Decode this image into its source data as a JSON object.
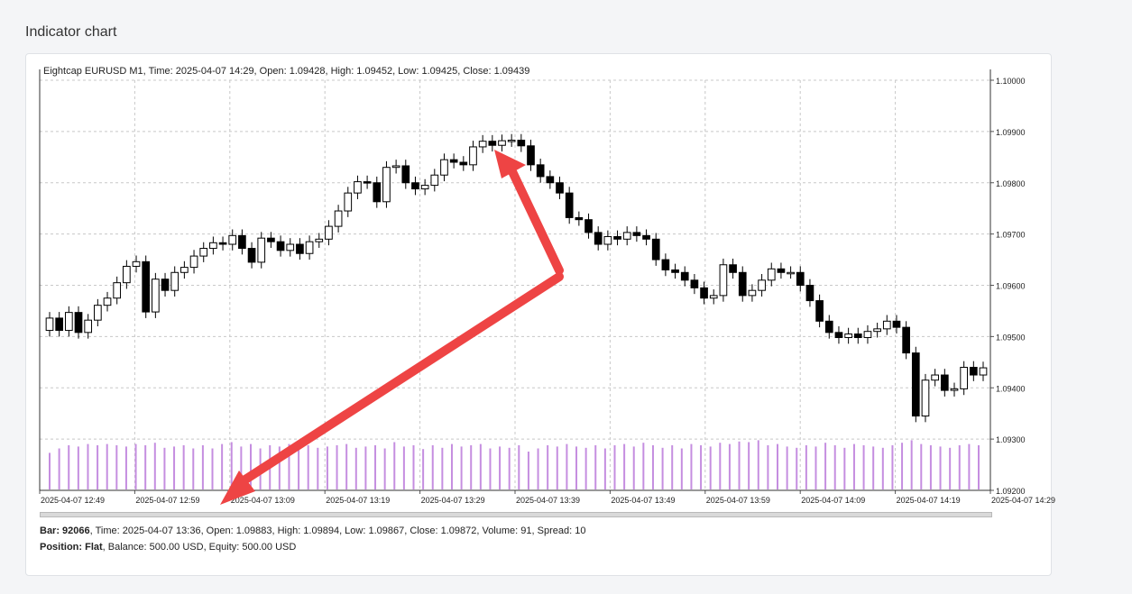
{
  "page": {
    "section_title": "Indicator chart"
  },
  "chart_header": "Eightcap EURUSD M1, Time: 2025-04-07 14:29, Open: 1.09428, High: 1.09452, Low: 1.09425, Close: 1.09439",
  "bar_info": {
    "bar_label": "Bar: 92066",
    "details": ", Time: 2025-04-07 13:36, Open: 1.09883, High: 1.09894, Low: 1.09867, Close: 1.09872, Volume: 91, Spread: 10"
  },
  "position_info": {
    "position_label": "Position: Flat",
    "details": ", Balance: 500.00 USD, Equity: 500.00 USD"
  },
  "colors": {
    "bull_body": "#ffffff",
    "bear_body": "#000000",
    "wick": "#000000",
    "volume": "#c58ee0",
    "grid": "#c8c8c8",
    "arrow": "#ee4444"
  },
  "chart_data": {
    "type": "candlestick",
    "price_ticks": [
      "1.10000",
      "1.09900",
      "1.09800",
      "1.09700",
      "1.09600",
      "1.09500",
      "1.09400",
      "1.09300",
      "1.09200"
    ],
    "ylim": [
      1.092,
      1.1
    ],
    "time_ticks": [
      "2025-04-07 12:49",
      "2025-04-07 12:59",
      "2025-04-07 13:09",
      "2025-04-07 13:19",
      "2025-04-07 13:29",
      "2025-04-07 13:39",
      "2025-04-07 13:49",
      "2025-04-07 13:59",
      "2025-04-07 14:09",
      "2025-04-07 14:19",
      "2025-04-07 14:29"
    ],
    "grid": true,
    "series": [
      {
        "name": "EURUSD M1",
        "closes": [
          1.09536,
          1.09512,
          1.09547,
          1.09508,
          1.09532,
          1.09561,
          1.09575,
          1.09605,
          1.09637,
          1.09646,
          1.09548,
          1.09612,
          1.0959,
          1.09625,
          1.09635,
          1.09657,
          1.09672,
          1.09683,
          1.0968,
          1.09697,
          1.09672,
          1.09645,
          1.09692,
          1.09685,
          1.09668,
          1.0968,
          1.09662,
          1.09685,
          1.0969,
          1.09715,
          1.09745,
          1.0978,
          1.09802,
          1.098,
          1.09763,
          1.0983,
          1.09833,
          1.098,
          1.09788,
          1.09795,
          1.09815,
          1.09845,
          1.0984,
          1.09835,
          1.0987,
          1.09881,
          1.09873,
          1.09882,
          1.09883,
          1.09872,
          1.09835,
          1.09812,
          1.098,
          1.0978,
          1.09732,
          1.09728,
          1.09703,
          1.0968,
          1.09695,
          1.0969,
          1.09703,
          1.09697,
          1.0969,
          1.0965,
          1.0963,
          1.09625,
          1.0961,
          1.09595,
          1.09575,
          1.0958,
          1.0964,
          1.09625,
          1.0958,
          1.0959,
          1.0961,
          1.09632,
          1.09625,
          1.09625,
          1.096,
          1.0957,
          1.0953,
          1.09508,
          1.09498,
          1.09505,
          1.09498,
          1.0951,
          1.09515,
          1.0953,
          1.09518,
          1.09468,
          1.09345,
          1.09415,
          1.09425,
          1.09395,
          1.09398,
          1.0944,
          1.09425,
          1.09439
        ],
        "open": 1.09512,
        "volumes": [
          58,
          65,
          70,
          68,
          72,
          70,
          72,
          70,
          68,
          72,
          70,
          74,
          66,
          68,
          70,
          65,
          70,
          65,
          72,
          75,
          68,
          72,
          65,
          70,
          68,
          72,
          72,
          70,
          66,
          68,
          70,
          72,
          66,
          68,
          70,
          65,
          75,
          68,
          70,
          64,
          70,
          66,
          72,
          68,
          70,
          72,
          65,
          68,
          66,
          70,
          60,
          65,
          70,
          68,
          72,
          68,
          66,
          70,
          65,
          70,
          72,
          68,
          74,
          70,
          66,
          70,
          65,
          72,
          70,
          68,
          74,
          72,
          76,
          75,
          78,
          70,
          72,
          68,
          66,
          70,
          68,
          74,
          70,
          66,
          72,
          70,
          68,
          66,
          70,
          74,
          78,
          72,
          70,
          68,
          66,
          70,
          72,
          70
        ]
      }
    ]
  }
}
